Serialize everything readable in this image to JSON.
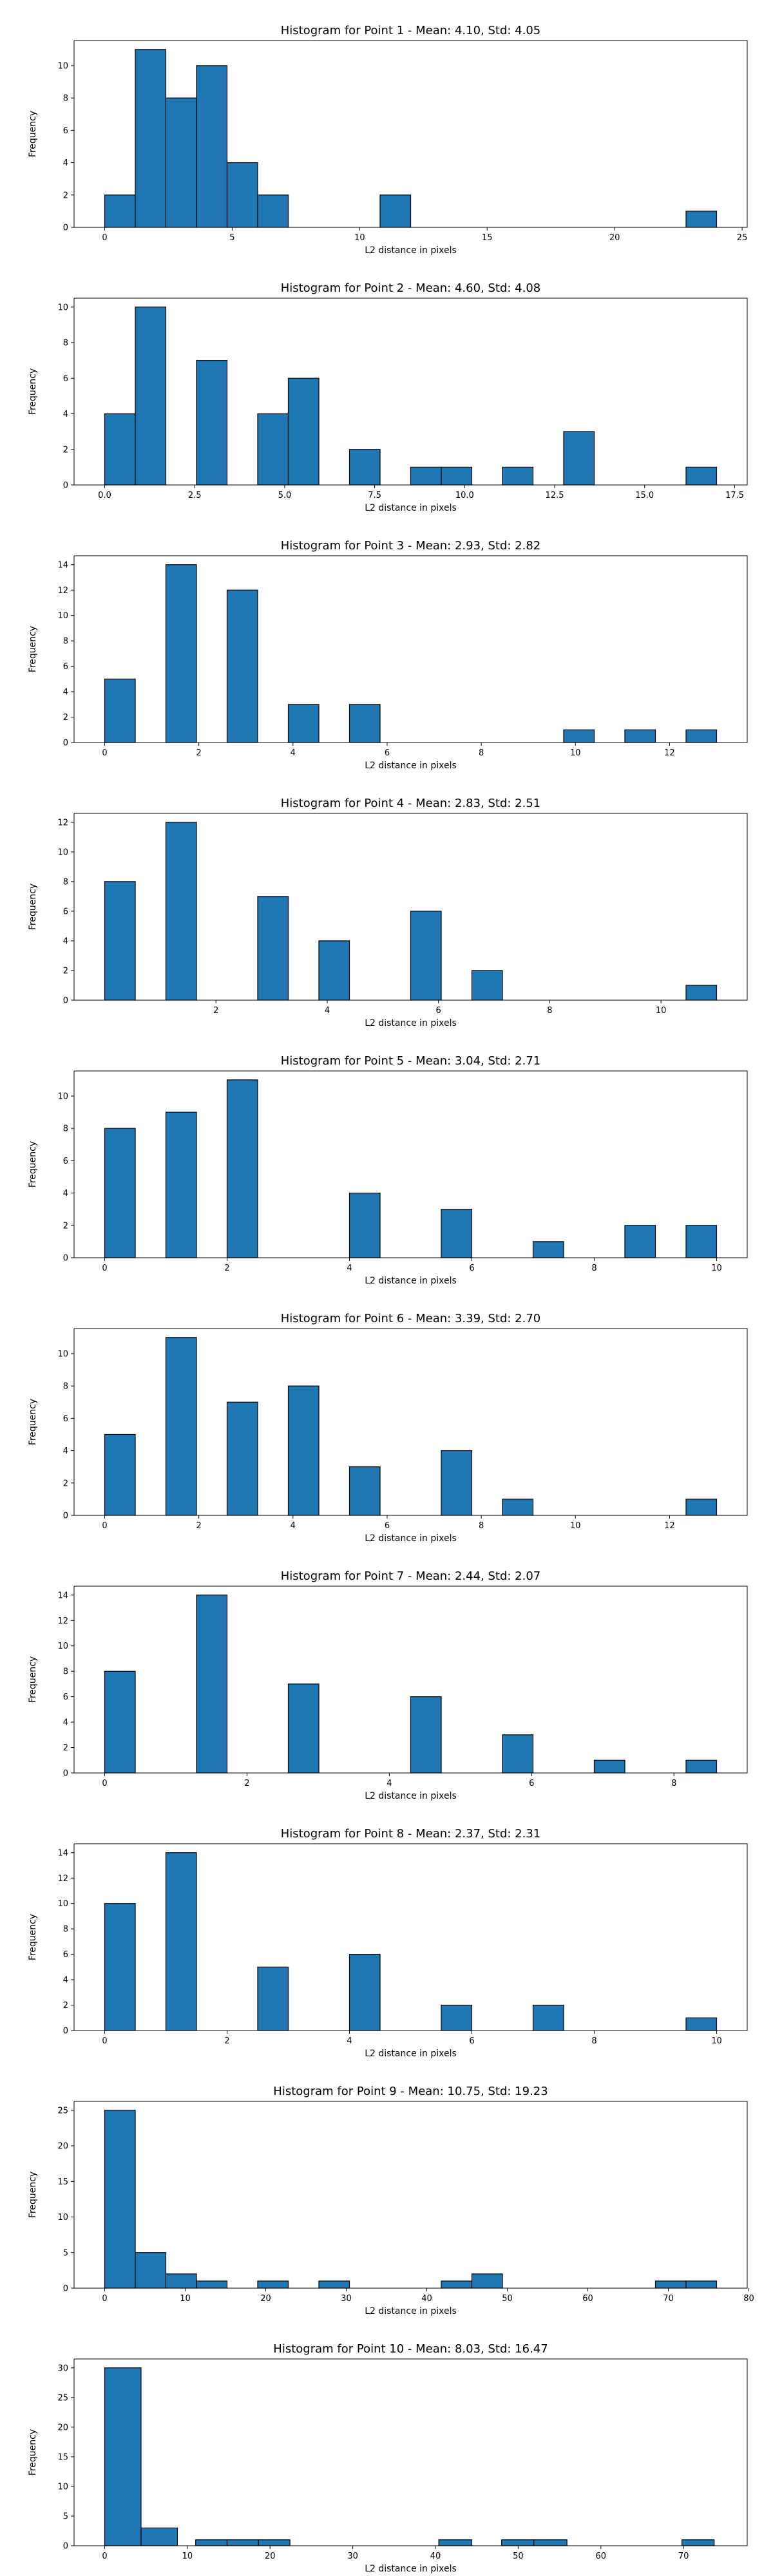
{
  "chart_data": [
    {
      "type": "bar",
      "title": "Histogram for Point 1 - Mean: 4.10, Std: 4.05",
      "xlabel": "L2 distance in pixels",
      "ylabel": "Frequency",
      "xlim": [
        -1.2,
        25.2
      ],
      "ylim": [
        0,
        11.55
      ],
      "xticks": [
        0,
        5,
        10,
        15,
        20,
        25
      ],
      "yticks": [
        0,
        2,
        4,
        6,
        8,
        10
      ],
      "bins": [
        {
          "x0": 0.0,
          "x1": 1.2,
          "count": 2
        },
        {
          "x0": 1.2,
          "x1": 2.4,
          "count": 11
        },
        {
          "x0": 2.4,
          "x1": 3.6,
          "count": 8
        },
        {
          "x0": 3.6,
          "x1": 4.8,
          "count": 10
        },
        {
          "x0": 4.8,
          "x1": 6.0,
          "count": 4
        },
        {
          "x0": 6.0,
          "x1": 7.2,
          "count": 2
        },
        {
          "x0": 10.8,
          "x1": 12.0,
          "count": 2
        },
        {
          "x0": 22.8,
          "x1": 24.0,
          "count": 1
        }
      ]
    },
    {
      "type": "bar",
      "title": "Histogram for Point 2 - Mean: 4.60, Std: 4.08",
      "xlabel": "L2 distance in pixels",
      "ylabel": "Frequency",
      "xlim": [
        -0.85,
        17.85
      ],
      "ylim": [
        0,
        10.5
      ],
      "xticks": [
        0.0,
        2.5,
        5.0,
        7.5,
        10.0,
        12.5,
        15.0,
        17.5
      ],
      "xtick_labels": [
        "0.0",
        "2.5",
        "5.0",
        "7.5",
        "10.0",
        "12.5",
        "15.0",
        "17.5"
      ],
      "yticks": [
        0,
        2,
        4,
        6,
        8,
        10
      ],
      "bins": [
        {
          "x0": 0.0,
          "x1": 0.85,
          "count": 4
        },
        {
          "x0": 0.85,
          "x1": 1.7,
          "count": 10
        },
        {
          "x0": 2.55,
          "x1": 3.4,
          "count": 7
        },
        {
          "x0": 4.25,
          "x1": 5.1,
          "count": 4
        },
        {
          "x0": 5.1,
          "x1": 5.95,
          "count": 6
        },
        {
          "x0": 6.8,
          "x1": 7.65,
          "count": 2
        },
        {
          "x0": 8.5,
          "x1": 9.35,
          "count": 1
        },
        {
          "x0": 9.35,
          "x1": 10.2,
          "count": 1
        },
        {
          "x0": 11.05,
          "x1": 11.9,
          "count": 1
        },
        {
          "x0": 12.75,
          "x1": 13.6,
          "count": 3
        },
        {
          "x0": 16.15,
          "x1": 17.0,
          "count": 1
        }
      ]
    },
    {
      "type": "bar",
      "title": "Histogram for Point 3 - Mean: 2.93, Std: 2.82",
      "xlabel": "L2 distance in pixels",
      "ylabel": "Frequency",
      "xlim": [
        -0.65,
        13.65
      ],
      "ylim": [
        0,
        14.7
      ],
      "xticks": [
        0,
        2,
        4,
        6,
        8,
        10,
        12
      ],
      "yticks": [
        0,
        2,
        4,
        6,
        8,
        10,
        12,
        14
      ],
      "bins": [
        {
          "x0": 0.0,
          "x1": 0.65,
          "count": 5
        },
        {
          "x0": 1.3,
          "x1": 1.95,
          "count": 14
        },
        {
          "x0": 2.6,
          "x1": 3.25,
          "count": 12
        },
        {
          "x0": 3.9,
          "x1": 4.55,
          "count": 3
        },
        {
          "x0": 4.55,
          "x1": 5.2,
          "count": 0
        },
        {
          "x0": 5.2,
          "x1": 5.85,
          "count": 3
        },
        {
          "x0": 9.75,
          "x1": 10.4,
          "count": 1
        },
        {
          "x0": 11.05,
          "x1": 11.7,
          "count": 1
        },
        {
          "x0": 12.35,
          "x1": 13.0,
          "count": 1
        }
      ]
    },
    {
      "type": "bar",
      "title": "Histogram for Point 4 - Mean: 2.83, Std: 2.51",
      "xlabel": "L2 distance in pixels",
      "ylabel": "Frequency",
      "xlim": [
        -0.55,
        11.55
      ],
      "ylim": [
        0,
        12.6
      ],
      "xticks": [
        2,
        4,
        6,
        8,
        10
      ],
      "yticks": [
        0,
        2,
        4,
        6,
        8,
        10,
        12
      ],
      "bins": [
        {
          "x0": 0.0,
          "x1": 0.55,
          "count": 8
        },
        {
          "x0": 1.1,
          "x1": 1.65,
          "count": 12
        },
        {
          "x0": 2.75,
          "x1": 3.3,
          "count": 7
        },
        {
          "x0": 3.85,
          "x1": 4.4,
          "count": 4
        },
        {
          "x0": 4.95,
          "x1": 5.5,
          "count": 0
        },
        {
          "x0": 5.5,
          "x1": 6.05,
          "count": 6
        },
        {
          "x0": 6.6,
          "x1": 7.15,
          "count": 2
        },
        {
          "x0": 10.45,
          "x1": 11.0,
          "count": 1
        }
      ]
    },
    {
      "type": "bar",
      "title": "Histogram for Point 5 - Mean: 3.04, Std: 2.71",
      "xlabel": "L2 distance in pixels",
      "ylabel": "Frequency",
      "xlim": [
        -0.5,
        10.5
      ],
      "ylim": [
        0,
        11.55
      ],
      "xticks": [
        0,
        2,
        4,
        6,
        8,
        10
      ],
      "yticks": [
        0,
        2,
        4,
        6,
        8,
        10
      ],
      "bins": [
        {
          "x0": 0.0,
          "x1": 0.5,
          "count": 8
        },
        {
          "x0": 1.0,
          "x1": 1.5,
          "count": 9
        },
        {
          "x0": 2.0,
          "x1": 2.5,
          "count": 11
        },
        {
          "x0": 4.0,
          "x1": 4.5,
          "count": 4
        },
        {
          "x0": 5.5,
          "x1": 6.0,
          "count": 3
        },
        {
          "x0": 7.0,
          "x1": 7.5,
          "count": 1
        },
        {
          "x0": 8.5,
          "x1": 9.0,
          "count": 2
        },
        {
          "x0": 9.5,
          "x1": 10.0,
          "count": 2
        }
      ]
    },
    {
      "type": "bar",
      "title": "Histogram for Point 6 - Mean: 3.39, Std: 2.70",
      "xlabel": "L2 distance in pixels",
      "ylabel": "Frequency",
      "xlim": [
        -0.65,
        13.65
      ],
      "ylim": [
        0,
        11.55
      ],
      "xticks": [
        0,
        2,
        4,
        6,
        8,
        10,
        12
      ],
      "yticks": [
        0,
        2,
        4,
        6,
        8,
        10
      ],
      "bins": [
        {
          "x0": 0.0,
          "x1": 0.65,
          "count": 5
        },
        {
          "x0": 1.3,
          "x1": 1.95,
          "count": 11
        },
        {
          "x0": 2.6,
          "x1": 3.25,
          "count": 7
        },
        {
          "x0": 3.9,
          "x1": 4.55,
          "count": 8
        },
        {
          "x0": 5.2,
          "x1": 5.85,
          "count": 3
        },
        {
          "x0": 7.15,
          "x1": 7.8,
          "count": 4
        },
        {
          "x0": 8.45,
          "x1": 9.1,
          "count": 1
        },
        {
          "x0": 12.35,
          "x1": 13.0,
          "count": 1
        }
      ]
    },
    {
      "type": "bar",
      "title": "Histogram for Point 7 - Mean: 2.44, Std: 2.07",
      "xlabel": "L2 distance in pixels",
      "ylabel": "Frequency",
      "xlim": [
        -0.43,
        9.03
      ],
      "ylim": [
        0,
        14.7
      ],
      "xticks": [
        0,
        2,
        4,
        6,
        8
      ],
      "yticks": [
        0,
        2,
        4,
        6,
        8,
        10,
        12,
        14
      ],
      "bins": [
        {
          "x0": 0.0,
          "x1": 0.43,
          "count": 8
        },
        {
          "x0": 1.29,
          "x1": 1.72,
          "count": 14
        },
        {
          "x0": 2.58,
          "x1": 3.01,
          "count": 7
        },
        {
          "x0": 4.3,
          "x1": 4.73,
          "count": 6
        },
        {
          "x0": 5.59,
          "x1": 6.02,
          "count": 3
        },
        {
          "x0": 6.88,
          "x1": 7.31,
          "count": 1
        },
        {
          "x0": 8.17,
          "x1": 8.6,
          "count": 1
        }
      ]
    },
    {
      "type": "bar",
      "title": "Histogram for Point 8 - Mean: 2.37, Std: 2.31",
      "xlabel": "L2 distance in pixels",
      "ylabel": "Frequency",
      "xlim": [
        -0.5,
        10.5
      ],
      "ylim": [
        0,
        14.7
      ],
      "xticks": [
        0,
        2,
        4,
        6,
        8,
        10
      ],
      "yticks": [
        0,
        2,
        4,
        6,
        8,
        10,
        12,
        14
      ],
      "bins": [
        {
          "x0": 0.0,
          "x1": 0.5,
          "count": 10
        },
        {
          "x0": 1.0,
          "x1": 1.5,
          "count": 14
        },
        {
          "x0": 2.5,
          "x1": 3.0,
          "count": 5
        },
        {
          "x0": 4.0,
          "x1": 4.5,
          "count": 6
        },
        {
          "x0": 5.5,
          "x1": 6.0,
          "count": 2
        },
        {
          "x0": 7.0,
          "x1": 7.5,
          "count": 2
        },
        {
          "x0": 9.5,
          "x1": 10.0,
          "count": 1
        }
      ]
    },
    {
      "type": "bar",
      "title": "Histogram for Point 9 - Mean: 10.75, Std: 19.23",
      "xlabel": "L2 distance in pixels",
      "ylabel": "Frequency",
      "xlim": [
        -3.8,
        79.8
      ],
      "ylim": [
        0,
        26.25
      ],
      "xticks": [
        0,
        10,
        20,
        30,
        40,
        50,
        60,
        70,
        80
      ],
      "yticks": [
        0,
        5,
        10,
        15,
        20,
        25
      ],
      "bins": [
        {
          "x0": 0.0,
          "x1": 3.8,
          "count": 25
        },
        {
          "x0": 3.8,
          "x1": 7.6,
          "count": 5
        },
        {
          "x0": 7.6,
          "x1": 11.4,
          "count": 2
        },
        {
          "x0": 11.4,
          "x1": 15.2,
          "count": 1
        },
        {
          "x0": 19.0,
          "x1": 22.8,
          "count": 1
        },
        {
          "x0": 26.6,
          "x1": 30.4,
          "count": 1
        },
        {
          "x0": 41.8,
          "x1": 45.6,
          "count": 1
        },
        {
          "x0": 45.6,
          "x1": 49.4,
          "count": 2
        },
        {
          "x0": 68.4,
          "x1": 72.2,
          "count": 1
        },
        {
          "x0": 72.2,
          "x1": 76.0,
          "count": 1
        }
      ]
    },
    {
      "type": "bar",
      "title": "Histogram for Point 10 - Mean: 8.03, Std: 16.47",
      "xlabel": "L2 distance in pixels",
      "ylabel": "Frequency",
      "xlim": [
        -3.7,
        77.7
      ],
      "ylim": [
        0,
        31.5
      ],
      "xticks": [
        0,
        10,
        20,
        30,
        40,
        50,
        60,
        70
      ],
      "yticks": [
        0,
        5,
        10,
        15,
        20,
        25,
        30
      ],
      "bins": [
        {
          "x0": 0.0,
          "x1": 4.4,
          "count": 30
        },
        {
          "x0": 4.4,
          "x1": 8.8,
          "count": 3
        },
        {
          "x0": 11.0,
          "x1": 14.8,
          "count": 1
        },
        {
          "x0": 14.8,
          "x1": 18.6,
          "count": 1
        },
        {
          "x0": 18.6,
          "x1": 22.4,
          "count": 1
        },
        {
          "x0": 40.4,
          "x1": 44.4,
          "count": 1
        },
        {
          "x0": 48.0,
          "x1": 51.9,
          "count": 1
        },
        {
          "x0": 51.9,
          "x1": 55.9,
          "count": 1
        },
        {
          "x0": 69.8,
          "x1": 73.7,
          "count": 1
        }
      ]
    }
  ],
  "style": {
    "bar_color": "#1f77b4",
    "edge_color": "#000000"
  }
}
